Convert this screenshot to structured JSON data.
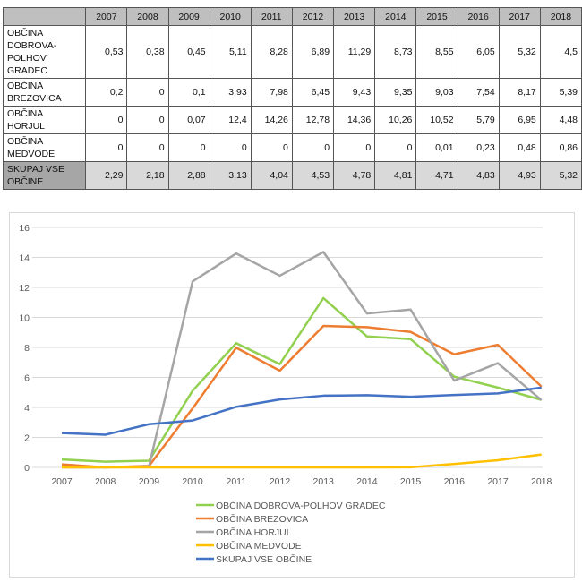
{
  "table": {
    "years": [
      "2007",
      "2008",
      "2009",
      "2010",
      "2011",
      "2012",
      "2013",
      "2014",
      "2015",
      "2016",
      "2017",
      "2018"
    ],
    "rows": [
      {
        "label_lines": [
          "OBČINA",
          "DOBROVA-",
          "POLHOV",
          "GRADEC"
        ],
        "values": [
          "0,53",
          "0,38",
          "0,45",
          "5,11",
          "8,28",
          "6,89",
          "11,29",
          "8,73",
          "8,55",
          "6,05",
          "5,32",
          "4,5"
        ]
      },
      {
        "label_lines": [
          "OBČINA",
          "BREZOVICA"
        ],
        "values": [
          "0,2",
          "0",
          "0,1",
          "3,93",
          "7,98",
          "6,45",
          "9,43",
          "9,35",
          "9,03",
          "7,54",
          "8,17",
          "5,39"
        ]
      },
      {
        "label_lines": [
          "OBČINA",
          "HORJUL"
        ],
        "values": [
          "0",
          "0",
          "0,07",
          "12,4",
          "14,26",
          "12,78",
          "14,36",
          "10,26",
          "10,52",
          "5,79",
          "6,95",
          "4,48"
        ]
      },
      {
        "label_lines": [
          "OBČINA",
          "MEDVODE"
        ],
        "values": [
          "0",
          "0",
          "0",
          "0",
          "0",
          "0",
          "0",
          "0",
          "0,01",
          "0,23",
          "0,48",
          "0,86"
        ]
      },
      {
        "label_lines": [
          "SKUPAJ VSE",
          "OBČINE"
        ],
        "values": [
          "2,29",
          "2,18",
          "2,88",
          "3,13",
          "4,04",
          "4,53",
          "4,78",
          "4,81",
          "4,71",
          "4,83",
          "4,93",
          "5,32"
        ]
      }
    ]
  },
  "chart_data": {
    "type": "line",
    "x": [
      "2007",
      "2008",
      "2009",
      "2010",
      "2011",
      "2012",
      "2013",
      "2014",
      "2015",
      "2016",
      "2017",
      "2018"
    ],
    "ylim": [
      0,
      16
    ],
    "yticks": [
      "0",
      "2",
      "4",
      "6",
      "8",
      "10",
      "12",
      "14",
      "16"
    ],
    "grid": true,
    "legend_position": "bottom",
    "series": [
      {
        "name": "OBČINA DOBROVA-POLHOV GRADEC",
        "color": "#92d050",
        "values": [
          0.53,
          0.38,
          0.45,
          5.11,
          8.28,
          6.89,
          11.29,
          8.73,
          8.55,
          6.05,
          5.32,
          4.5
        ]
      },
      {
        "name": "OBČINA BREZOVICA",
        "color": "#ed7d31",
        "values": [
          0.2,
          0,
          0.1,
          3.93,
          7.98,
          6.45,
          9.43,
          9.35,
          9.03,
          7.54,
          8.17,
          5.39
        ]
      },
      {
        "name": "OBČINA HORJUL",
        "color": "#a5a5a5",
        "values": [
          0,
          0,
          0.07,
          12.4,
          14.26,
          12.78,
          14.36,
          10.26,
          10.52,
          5.79,
          6.95,
          4.48
        ]
      },
      {
        "name": "OBČINA MEDVODE",
        "color": "#ffc000",
        "values": [
          0,
          0,
          0,
          0,
          0,
          0,
          0,
          0,
          0.01,
          0.23,
          0.48,
          0.86
        ]
      },
      {
        "name": "SKUPAJ VSE OBČINE",
        "color": "#4472c4",
        "values": [
          2.29,
          2.18,
          2.88,
          3.13,
          4.04,
          4.53,
          4.78,
          4.81,
          4.71,
          4.83,
          4.93,
          5.32
        ]
      }
    ]
  }
}
